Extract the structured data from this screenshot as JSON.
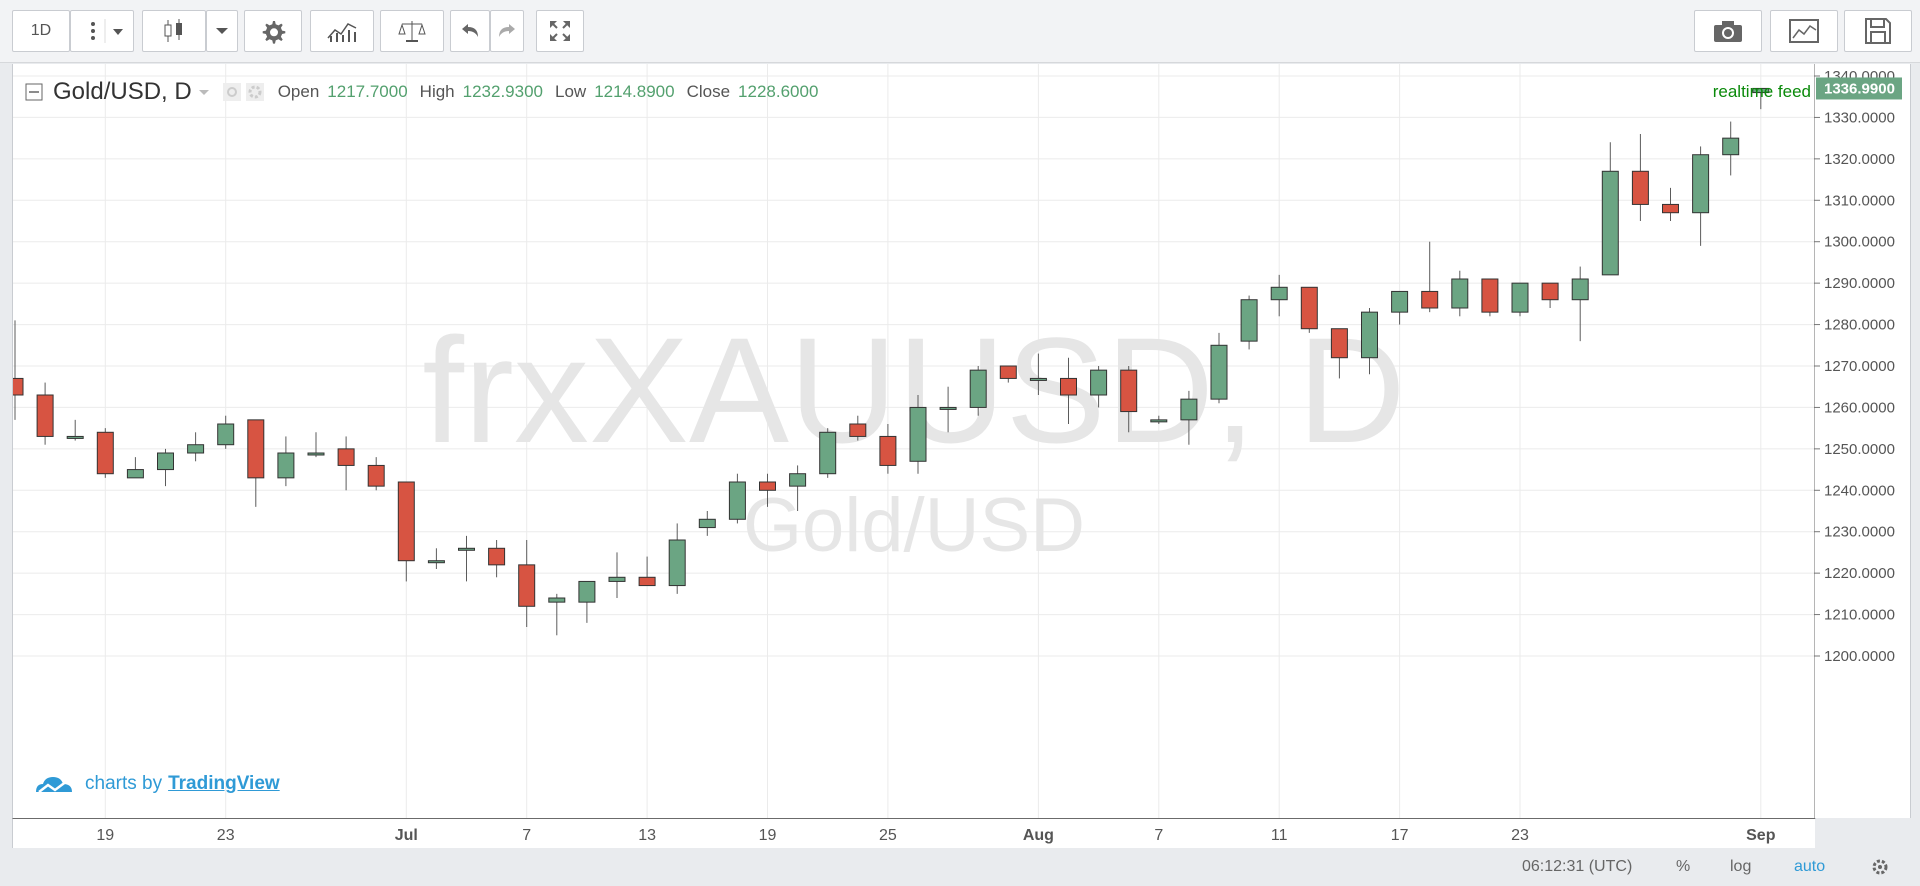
{
  "toolbar": {
    "interval": "1D"
  },
  "legend": {
    "symbol": "Gold/USD, D",
    "open_label": "Open",
    "open": "1217.7000",
    "high_label": "High",
    "high": "1232.9300",
    "low_label": "Low",
    "low": "1214.8900",
    "close_label": "Close",
    "close": "1228.6000"
  },
  "watermark": {
    "main": "frxXAUUSD, D",
    "sub": "Gold/USD"
  },
  "realtime_label": "realtime feed",
  "branding": {
    "prefix": "charts by",
    "name": "TradingView"
  },
  "price_axis": {
    "labels": [
      "1340.0000",
      "1330.0000",
      "1320.0000",
      "1310.0000",
      "1300.0000",
      "1290.0000",
      "1280.0000",
      "1270.0000",
      "1260.0000",
      "1250.0000",
      "1240.0000",
      "1230.0000",
      "1220.0000",
      "1210.0000",
      "1200.0000"
    ],
    "current": "1336.9900"
  },
  "time_axis": {
    "labels": [
      {
        "i": 3,
        "t": "19"
      },
      {
        "i": 7,
        "t": "23"
      },
      {
        "i": 13,
        "t": "Jul"
      },
      {
        "i": 17,
        "t": "7"
      },
      {
        "i": 21,
        "t": "13"
      },
      {
        "i": 25,
        "t": "19"
      },
      {
        "i": 29,
        "t": "25"
      },
      {
        "i": 34,
        "t": "Aug"
      },
      {
        "i": 38,
        "t": "7"
      },
      {
        "i": 42,
        "t": "11"
      },
      {
        "i": 46,
        "t": "17"
      },
      {
        "i": 50,
        "t": "23"
      },
      {
        "i": 58,
        "t": "Sep"
      }
    ]
  },
  "status": {
    "time": "06:12:31 (UTC)",
    "percent": "%",
    "log": "log",
    "auto": "auto"
  },
  "colors": {
    "up": "#6ba583",
    "down": "#d75442",
    "accent": "#2f9ad6"
  },
  "chart_data": {
    "type": "candlestick",
    "y_range": [
      1197,
      1345
    ],
    "candles": [
      {
        "o": 1267,
        "h": 1281,
        "l": 1257,
        "c": 1263
      },
      {
        "o": 1263,
        "h": 1266,
        "l": 1251,
        "c": 1253
      },
      {
        "o": 1253,
        "h": 1257,
        "l": 1252,
        "c": 1253
      },
      {
        "o": 1254,
        "h": 1255,
        "l": 1243,
        "c": 1244
      },
      {
        "o": 1243,
        "h": 1248,
        "l": 1243,
        "c": 1245
      },
      {
        "o": 1245,
        "h": 1250,
        "l": 1241,
        "c": 1249
      },
      {
        "o": 1249,
        "h": 1254,
        "l": 1247,
        "c": 1251
      },
      {
        "o": 1251,
        "h": 1258,
        "l": 1250,
        "c": 1256
      },
      {
        "o": 1257,
        "h": 1257,
        "l": 1236,
        "c": 1243
      },
      {
        "o": 1243,
        "h": 1253,
        "l": 1241,
        "c": 1249
      },
      {
        "o": 1249,
        "h": 1254,
        "l": 1248,
        "c": 1249
      },
      {
        "o": 1250,
        "h": 1253,
        "l": 1240,
        "c": 1246
      },
      {
        "o": 1246,
        "h": 1248,
        "l": 1240,
        "c": 1241
      },
      {
        "o": 1242,
        "h": 1242,
        "l": 1218,
        "c": 1223
      },
      {
        "o": 1223,
        "h": 1226,
        "l": 1221,
        "c": 1223
      },
      {
        "o": 1226,
        "h": 1229,
        "l": 1218,
        "c": 1226
      },
      {
        "o": 1226,
        "h": 1228,
        "l": 1219,
        "c": 1222
      },
      {
        "o": 1222,
        "h": 1228,
        "l": 1207,
        "c": 1212
      },
      {
        "o": 1213,
        "h": 1215,
        "l": 1205,
        "c": 1214
      },
      {
        "o": 1213,
        "h": 1218,
        "l": 1208,
        "c": 1218
      },
      {
        "o": 1218,
        "h": 1225,
        "l": 1214,
        "c": 1219
      },
      {
        "o": 1219,
        "h": 1224,
        "l": 1217,
        "c": 1217
      },
      {
        "o": 1217,
        "h": 1232,
        "l": 1215,
        "c": 1228
      },
      {
        "o": 1231,
        "h": 1235,
        "l": 1229,
        "c": 1233
      },
      {
        "o": 1233,
        "h": 1244,
        "l": 1232,
        "c": 1242
      },
      {
        "o": 1242,
        "h": 1244,
        "l": 1236,
        "c": 1240
      },
      {
        "o": 1241,
        "h": 1246,
        "l": 1235,
        "c": 1244
      },
      {
        "o": 1244,
        "h": 1255,
        "l": 1243,
        "c": 1254
      },
      {
        "o": 1256,
        "h": 1258,
        "l": 1252,
        "c": 1253
      },
      {
        "o": 1253,
        "h": 1256,
        "l": 1244,
        "c": 1246
      },
      {
        "o": 1247,
        "h": 1263,
        "l": 1244,
        "c": 1260
      },
      {
        "o": 1260,
        "h": 1265,
        "l": 1254,
        "c": 1260
      },
      {
        "o": 1260,
        "h": 1270,
        "l": 1258,
        "c": 1269
      },
      {
        "o": 1270,
        "h": 1270,
        "l": 1266,
        "c": 1267
      },
      {
        "o": 1267,
        "h": 1273,
        "l": 1263,
        "c": 1267
      },
      {
        "o": 1267,
        "h": 1272,
        "l": 1256,
        "c": 1263
      },
      {
        "o": 1263,
        "h": 1270,
        "l": 1260,
        "c": 1269
      },
      {
        "o": 1269,
        "h": 1270,
        "l": 1254,
        "c": 1259
      },
      {
        "o": 1257,
        "h": 1258,
        "l": 1256,
        "c": 1257
      },
      {
        "o": 1257,
        "h": 1264,
        "l": 1251,
        "c": 1262
      },
      {
        "o": 1262,
        "h": 1278,
        "l": 1261,
        "c": 1275
      },
      {
        "o": 1276,
        "h": 1287,
        "l": 1274,
        "c": 1286
      },
      {
        "o": 1286,
        "h": 1292,
        "l": 1282,
        "c": 1289
      },
      {
        "o": 1289,
        "h": 1289,
        "l": 1278,
        "c": 1279
      },
      {
        "o": 1279,
        "h": 1279,
        "l": 1267,
        "c": 1272
      },
      {
        "o": 1272,
        "h": 1284,
        "l": 1268,
        "c": 1283
      },
      {
        "o": 1283,
        "h": 1288,
        "l": 1280,
        "c": 1288
      },
      {
        "o": 1288,
        "h": 1300,
        "l": 1283,
        "c": 1284
      },
      {
        "o": 1284,
        "h": 1293,
        "l": 1282,
        "c": 1291
      },
      {
        "o": 1291,
        "h": 1291,
        "l": 1282,
        "c": 1283
      },
      {
        "o": 1283,
        "h": 1290,
        "l": 1282,
        "c": 1290
      },
      {
        "o": 1290,
        "h": 1290,
        "l": 1284,
        "c": 1286
      },
      {
        "o": 1286,
        "h": 1294,
        "l": 1276,
        "c": 1291
      },
      {
        "o": 1292,
        "h": 1324,
        "l": 1292,
        "c": 1317
      },
      {
        "o": 1317,
        "h": 1326,
        "l": 1305,
        "c": 1309
      },
      {
        "o": 1309,
        "h": 1313,
        "l": 1305,
        "c": 1307
      },
      {
        "o": 1307,
        "h": 1323,
        "l": 1299,
        "c": 1321
      },
      {
        "o": 1321,
        "h": 1329,
        "l": 1316,
        "c": 1325
      },
      {
        "o": 1336,
        "h": 1337,
        "l": 1332,
        "c": 1337
      }
    ]
  }
}
